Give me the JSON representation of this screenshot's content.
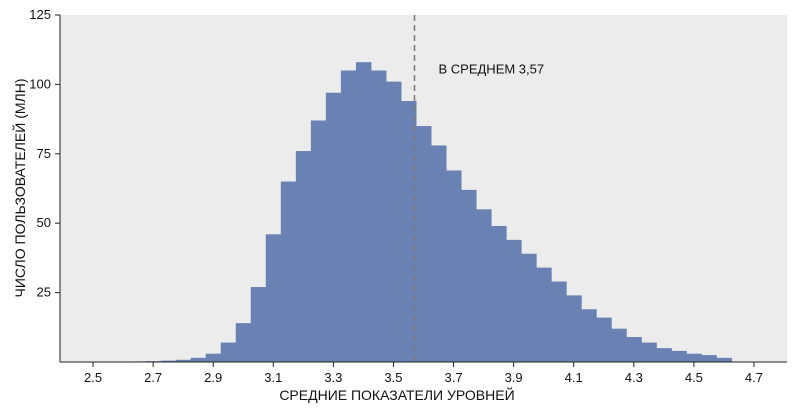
{
  "chart_data": {
    "type": "bar",
    "title": "",
    "xlabel": "СРЕДНИЕ ПОКАЗАТЕЛИ УРОВНЕЙ",
    "ylabel": "ЧИСЛО ПОЛЬЗОВАТЕЛЕЙ (МЛН)",
    "xlim": [
      2.39,
      4.81
    ],
    "ylim": [
      0,
      125
    ],
    "x_ticks": [
      "2.5",
      "2.7",
      "2.9",
      "3.1",
      "3.3",
      "3.5",
      "3.7",
      "3.9",
      "4.1",
      "4.3",
      "4.5",
      "4.7"
    ],
    "y_ticks": [
      "25",
      "50",
      "75",
      "100",
      "125"
    ],
    "grid": false,
    "bar_color": "#6a82b3",
    "plot_background": "#ececec",
    "bin_width": 0.05,
    "bins": [
      {
        "x": 2.65,
        "value": 0.2
      },
      {
        "x": 2.7,
        "value": 0.3
      },
      {
        "x": 2.75,
        "value": 0.5
      },
      {
        "x": 2.8,
        "value": 0.8
      },
      {
        "x": 2.85,
        "value": 1.5
      },
      {
        "x": 2.9,
        "value": 3
      },
      {
        "x": 2.95,
        "value": 7
      },
      {
        "x": 3.0,
        "value": 14
      },
      {
        "x": 3.05,
        "value": 27
      },
      {
        "x": 3.1,
        "value": 46
      },
      {
        "x": 3.15,
        "value": 65
      },
      {
        "x": 3.2,
        "value": 76
      },
      {
        "x": 3.25,
        "value": 87
      },
      {
        "x": 3.3,
        "value": 97
      },
      {
        "x": 3.35,
        "value": 105
      },
      {
        "x": 3.4,
        "value": 108
      },
      {
        "x": 3.45,
        "value": 105
      },
      {
        "x": 3.5,
        "value": 101
      },
      {
        "x": 3.55,
        "value": 94
      },
      {
        "x": 3.6,
        "value": 85
      },
      {
        "x": 3.65,
        "value": 78
      },
      {
        "x": 3.7,
        "value": 69
      },
      {
        "x": 3.75,
        "value": 62
      },
      {
        "x": 3.8,
        "value": 55
      },
      {
        "x": 3.85,
        "value": 49
      },
      {
        "x": 3.9,
        "value": 44
      },
      {
        "x": 3.95,
        "value": 39
      },
      {
        "x": 4.0,
        "value": 34
      },
      {
        "x": 4.05,
        "value": 29
      },
      {
        "x": 4.1,
        "value": 24
      },
      {
        "x": 4.15,
        "value": 19
      },
      {
        "x": 4.2,
        "value": 16
      },
      {
        "x": 4.25,
        "value": 12
      },
      {
        "x": 4.3,
        "value": 9
      },
      {
        "x": 4.35,
        "value": 7
      },
      {
        "x": 4.4,
        "value": 5
      },
      {
        "x": 4.45,
        "value": 4
      },
      {
        "x": 4.5,
        "value": 3
      },
      {
        "x": 4.55,
        "value": 2.5
      },
      {
        "x": 4.6,
        "value": 1.5
      }
    ],
    "mean_line": {
      "x": 3.57,
      "label": "В СРЕДНЕМ 3,57",
      "color": "#777777"
    }
  }
}
